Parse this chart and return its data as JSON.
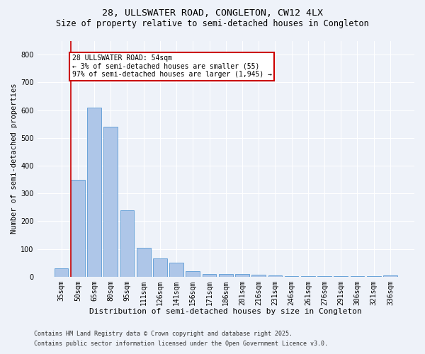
{
  "title1": "28, ULLSWATER ROAD, CONGLETON, CW12 4LX",
  "title2": "Size of property relative to semi-detached houses in Congleton",
  "xlabel": "Distribution of semi-detached houses by size in Congleton",
  "ylabel": "Number of semi-detached properties",
  "categories": [
    "35sqm",
    "50sqm",
    "65sqm",
    "80sqm",
    "95sqm",
    "111sqm",
    "126sqm",
    "141sqm",
    "156sqm",
    "171sqm",
    "186sqm",
    "201sqm",
    "216sqm",
    "231sqm",
    "246sqm",
    "261sqm",
    "276sqm",
    "291sqm",
    "306sqm",
    "321sqm",
    "336sqm"
  ],
  "values": [
    30,
    350,
    610,
    540,
    240,
    103,
    65,
    50,
    20,
    10,
    10,
    10,
    6,
    5,
    3,
    2,
    2,
    2,
    1,
    1,
    5
  ],
  "bar_color": "#aec6e8",
  "bar_edge_color": "#5b9bd5",
  "highlight_color": "#cc0000",
  "annotation_text": "28 ULLSWATER ROAD: 54sqm\n← 3% of semi-detached houses are smaller (55)\n97% of semi-detached houses are larger (1,945) →",
  "annotation_box_color": "#cc0000",
  "ylim": [
    0,
    850
  ],
  "yticks": [
    0,
    100,
    200,
    300,
    400,
    500,
    600,
    700,
    800
  ],
  "footer1": "Contains HM Land Registry data © Crown copyright and database right 2025.",
  "footer2": "Contains public sector information licensed under the Open Government Licence v3.0.",
  "bg_color": "#eef2f9",
  "plot_bg_color": "#eef2f9",
  "grid_color": "#ffffff",
  "title1_fontsize": 9.5,
  "title2_fontsize": 8.5,
  "xlabel_fontsize": 8,
  "ylabel_fontsize": 7.5,
  "tick_fontsize": 7,
  "annotation_fontsize": 7,
  "footer_fontsize": 6
}
